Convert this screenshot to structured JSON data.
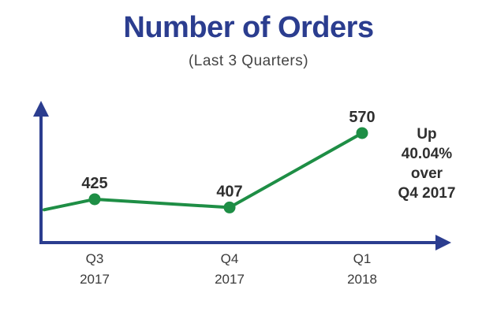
{
  "title": "Number of Orders",
  "subtitle": "(Last 3 Quarters)",
  "colors": {
    "title": "#2b3d8f",
    "axis": "#2b3d8f",
    "line": "#1e8e45"
  },
  "chart_data": {
    "type": "line",
    "categories": [
      [
        "Q3",
        "2017"
      ],
      [
        "Q4",
        "2017"
      ],
      [
        "Q1",
        "2018"
      ]
    ],
    "values": [
      425,
      407,
      570
    ],
    "data_labels": [
      "425",
      "407",
      "570"
    ],
    "lead_in_value": 402,
    "ylim": [
      330,
      620
    ],
    "grid": false,
    "annotation": [
      "Up",
      "40.04%",
      "over",
      "Q4 2017"
    ]
  }
}
